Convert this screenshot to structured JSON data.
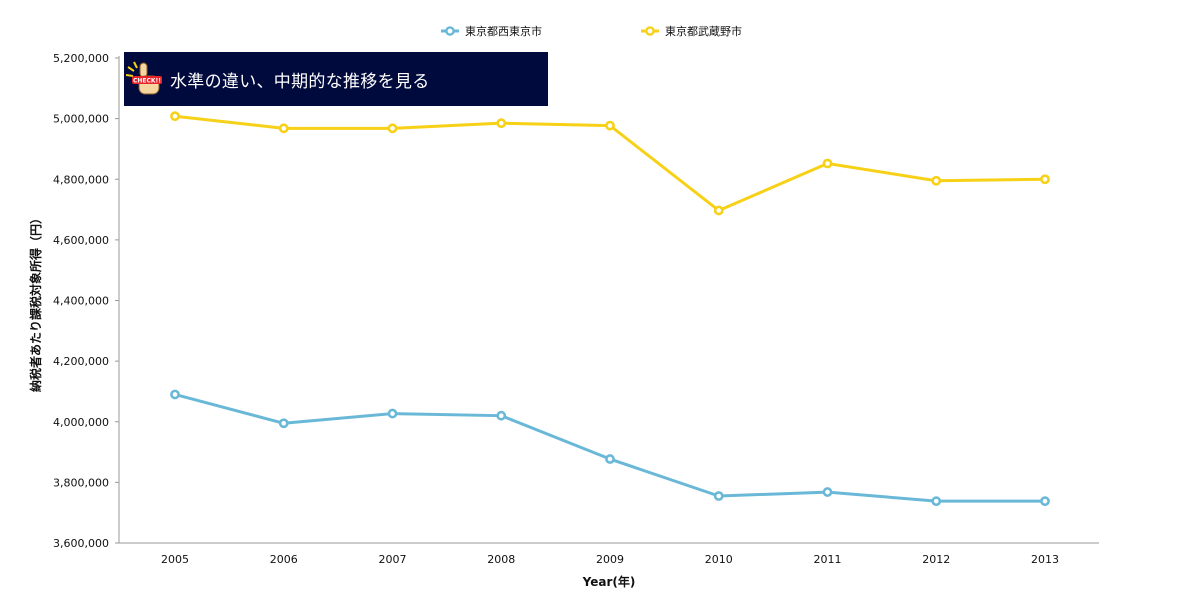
{
  "banner": {
    "text": "水準の違い、中期的な推移を見る",
    "icon": "check-hand-icon",
    "icon_text": "CHECK!!",
    "background": "#000a3c"
  },
  "chart_data": {
    "type": "line",
    "title": "",
    "xlabel": "Year(年)",
    "ylabel": "納税者あたり課税対象所得（円）",
    "categories": [
      "2005",
      "2006",
      "2007",
      "2008",
      "2009",
      "2010",
      "2011",
      "2012",
      "2013"
    ],
    "ylim": [
      3600000,
      5200000
    ],
    "yticks": [
      3600000,
      3800000,
      4000000,
      4200000,
      4400000,
      4600000,
      4800000,
      5000000,
      5200000
    ],
    "ytick_labels": [
      "3,600,000",
      "3,800,000",
      "4,000,000",
      "4,200,000",
      "4,400,000",
      "4,600,000",
      "4,800,000",
      "5,000,000",
      "5,200,000"
    ],
    "grid": false,
    "legend_position": "top-center",
    "series": [
      {
        "name": "東京都西東京市",
        "color": "#6ab8d8",
        "values": [
          4090000,
          3995000,
          4027000,
          4020000,
          3877000,
          3755000,
          3768000,
          3738000,
          3738000
        ]
      },
      {
        "name": "東京都武蔵野市",
        "color": "#f7d117",
        "values": [
          5008000,
          4968000,
          4968000,
          4985000,
          4977000,
          4697000,
          4852000,
          4795000,
          4800000
        ]
      }
    ]
  }
}
